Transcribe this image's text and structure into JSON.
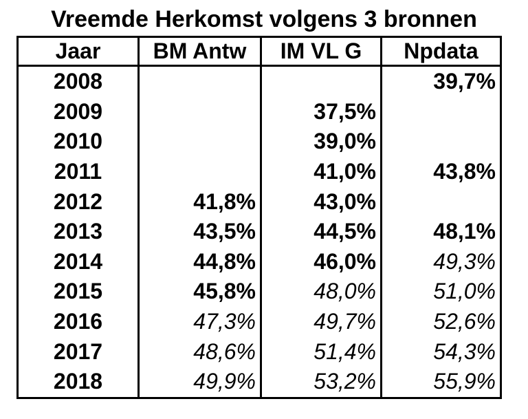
{
  "title": "Vreemde Herkomst volgens 3 bronnen",
  "colors": {
    "background": "#ffffff",
    "text": "#000000",
    "border": "#000000"
  },
  "chart_data": {
    "type": "table",
    "title": "Vreemde Herkomst volgens 3 bronnen",
    "columns": [
      "Jaar",
      "BM Antw",
      "IM VL G",
      "Npdata"
    ],
    "value_style_note": "bold = reported value, italic = extrapolated value",
    "rows": [
      {
        "year": "2008",
        "values": [
          "",
          "",
          "39,7%"
        ],
        "styles": [
          "",
          "",
          "bold"
        ]
      },
      {
        "year": "2009",
        "values": [
          "",
          "37,5%",
          ""
        ],
        "styles": [
          "",
          "bold",
          ""
        ]
      },
      {
        "year": "2010",
        "values": [
          "",
          "39,0%",
          ""
        ],
        "styles": [
          "",
          "bold",
          ""
        ]
      },
      {
        "year": "2011",
        "values": [
          "",
          "41,0%",
          "43,8%"
        ],
        "styles": [
          "",
          "bold",
          "bold"
        ]
      },
      {
        "year": "2012",
        "values": [
          "41,8%",
          "43,0%",
          ""
        ],
        "styles": [
          "bold",
          "bold",
          ""
        ]
      },
      {
        "year": "2013",
        "values": [
          "43,5%",
          "44,5%",
          "48,1%"
        ],
        "styles": [
          "bold",
          "bold",
          "bold"
        ]
      },
      {
        "year": "2014",
        "values": [
          "44,8%",
          "46,0%",
          "49,3%"
        ],
        "styles": [
          "bold",
          "bold",
          "italic"
        ]
      },
      {
        "year": "2015",
        "values": [
          "45,8%",
          "48,0%",
          "51,0%"
        ],
        "styles": [
          "bold",
          "italic",
          "italic"
        ]
      },
      {
        "year": "2016",
        "values": [
          "47,3%",
          "49,7%",
          "52,6%"
        ],
        "styles": [
          "italic",
          "italic",
          "italic"
        ]
      },
      {
        "year": "2017",
        "values": [
          "48,6%",
          "51,4%",
          "54,3%"
        ],
        "styles": [
          "italic",
          "italic",
          "italic"
        ]
      },
      {
        "year": "2018",
        "values": [
          "49,9%",
          "53,2%",
          "55,9%"
        ],
        "styles": [
          "italic",
          "italic",
          "italic"
        ]
      }
    ]
  }
}
